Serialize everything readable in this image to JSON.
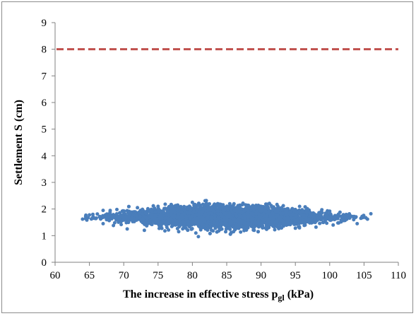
{
  "chart_data": {
    "type": "scatter",
    "title": "",
    "xlabel": "The increase in  effective stress p",
    "xlabel_subscript": "gl",
    "xlabel_suffix": " (kPa)",
    "ylabel": "Settlement S (cm)",
    "xlim": [
      60,
      110
    ],
    "ylim": [
      0,
      9
    ],
    "x_ticks": [
      "60",
      "65",
      "70",
      "75",
      "80",
      "85",
      "90",
      "95",
      "100",
      "105",
      "110"
    ],
    "y_ticks": [
      "0",
      "1",
      "2",
      "3",
      "4",
      "5",
      "6",
      "7",
      "8",
      "9"
    ],
    "grid": false,
    "legend": "none",
    "series": [
      {
        "kind": "scatter-cloud",
        "color": "#4a7ebb",
        "x_range": [
          64,
          106
        ],
        "y_center": 1.7,
        "y_core_range": [
          1.2,
          2.2
        ],
        "core_points": [
          [
            64.0,
            1.62
          ],
          [
            65.0,
            1.78
          ],
          [
            65.5,
            1.8
          ],
          [
            66.5,
            1.72
          ],
          [
            67.0,
            1.95
          ],
          [
            67.5,
            1.6
          ],
          [
            68.0,
            1.88
          ],
          [
            69.0,
            1.98
          ],
          [
            70.0,
            1.85
          ],
          [
            72.0,
            2.05
          ],
          [
            75.0,
            2.1
          ],
          [
            77.5,
            2.12
          ],
          [
            80.0,
            2.25
          ],
          [
            82.0,
            2.15
          ],
          [
            84.0,
            2.18
          ],
          [
            86.0,
            2.16
          ],
          [
            88.0,
            2.14
          ],
          [
            90.0,
            2.1
          ],
          [
            93.0,
            2.05
          ],
          [
            95.0,
            1.98
          ],
          [
            97.0,
            1.96
          ],
          [
            100.0,
            1.92
          ],
          [
            101.5,
            1.88
          ],
          [
            102.5,
            1.72
          ],
          [
            103.5,
            1.6
          ],
          [
            104.0,
            1.45
          ],
          [
            105.5,
            1.62
          ],
          [
            106.0,
            1.82
          ],
          [
            70.5,
            1.25
          ],
          [
            73.0,
            1.2
          ],
          [
            76.0,
            1.18
          ],
          [
            78.0,
            1.15
          ],
          [
            80.5,
            1.1
          ],
          [
            83.0,
            1.18
          ],
          [
            86.0,
            1.15
          ],
          [
            89.0,
            1.2
          ],
          [
            92.0,
            1.22
          ],
          [
            95.0,
            1.28
          ],
          [
            98.0,
            1.32
          ],
          [
            100.5,
            1.4
          ],
          [
            67.0,
            1.45
          ],
          [
            68.5,
            1.38
          ]
        ]
      },
      {
        "kind": "threshold-line",
        "y": 8,
        "color": "#c0504d",
        "style": "dashed"
      }
    ]
  }
}
